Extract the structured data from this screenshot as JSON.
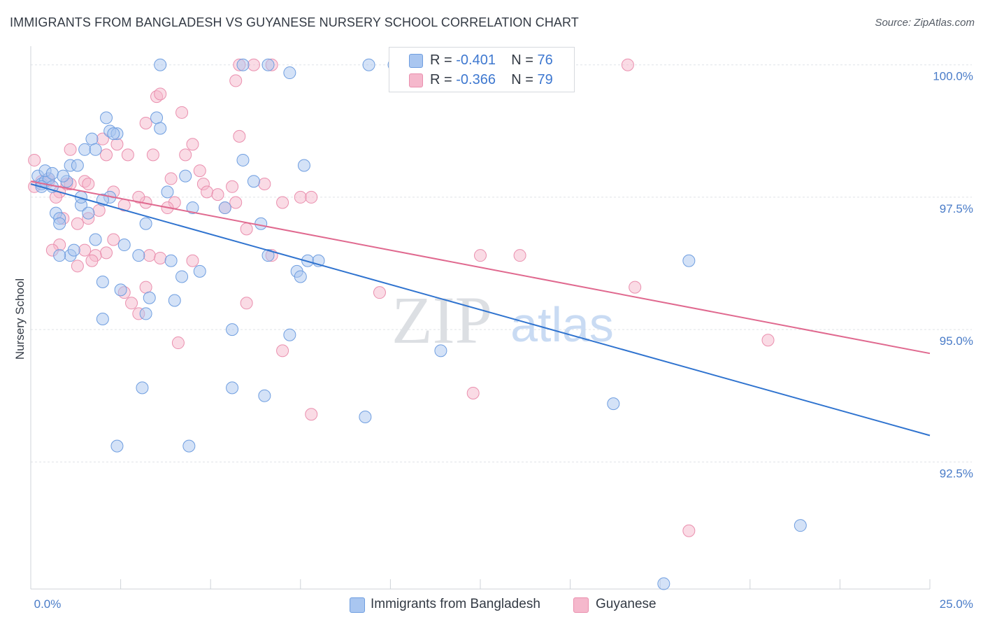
{
  "title": "IMMIGRANTS FROM BANGLADESH VS GUYANESE NURSERY SCHOOL CORRELATION CHART",
  "source": "Source: ZipAtlas.com",
  "watermark": {
    "zip": "ZIP",
    "atlas": "atlas"
  },
  "legend_top": [
    {
      "r_label": "R = ",
      "r_value": "-0.401",
      "n_label": "N = ",
      "n_value": "76"
    },
    {
      "r_label": "R = ",
      "r_value": "-0.366",
      "n_label": "N = ",
      "n_value": "79"
    }
  ],
  "legend_bottom": [
    {
      "label": "Immigrants from Bangladesh"
    },
    {
      "label": "Guyanese"
    }
  ],
  "colors": {
    "blue_fill": "#a9c6f0",
    "blue_stroke": "#6f9ee0",
    "blue_line": "#2f73cf",
    "pink_fill": "#f5b8cc",
    "pink_stroke": "#ea8fae",
    "pink_line": "#e0698f",
    "tick_text": "#4a7cc8",
    "grid": "#dfe3e8"
  },
  "chart_data": {
    "type": "scatter",
    "title": "IMMIGRANTS FROM BANGLADESH VS GUYANESE NURSERY SCHOOL CORRELATION CHART",
    "xlabel": "",
    "ylabel": "Nursery School",
    "xlim": [
      0,
      25
    ],
    "ylim": [
      90.1,
      100.3
    ],
    "x_tick_labels": [
      {
        "value": 0,
        "label": "0.0%"
      },
      {
        "value": 25,
        "label": "25.0%"
      }
    ],
    "y_tick_labels": [
      {
        "value": 100,
        "label": "100.0%"
      },
      {
        "value": 97.5,
        "label": "97.5%"
      },
      {
        "value": 95,
        "label": "95.0%"
      },
      {
        "value": 92.5,
        "label": "92.5%"
      }
    ],
    "series": [
      {
        "name": "Immigrants from Bangladesh",
        "color": "blue",
        "r": -0.401,
        "n": 76,
        "trend": {
          "x": [
            0,
            25
          ],
          "y": [
            97.75,
            93.0
          ]
        },
        "points": [
          [
            0.2,
            97.9
          ],
          [
            0.3,
            97.75
          ],
          [
            0.4,
            97.8
          ],
          [
            0.5,
            97.85
          ],
          [
            0.3,
            97.7
          ],
          [
            0.6,
            97.7
          ],
          [
            0.4,
            98.0
          ],
          [
            0.6,
            97.95
          ],
          [
            1.0,
            97.8
          ],
          [
            1.1,
            98.1
          ],
          [
            0.9,
            97.9
          ],
          [
            1.3,
            98.1
          ],
          [
            1.5,
            98.4
          ],
          [
            1.7,
            98.6
          ],
          [
            1.8,
            98.4
          ],
          [
            2.1,
            99.0
          ],
          [
            2.2,
            98.75
          ],
          [
            2.4,
            98.7
          ],
          [
            2.3,
            98.7
          ],
          [
            3.5,
            99.0
          ],
          [
            3.6,
            98.8
          ],
          [
            0.7,
            97.2
          ],
          [
            1.4,
            97.35
          ],
          [
            1.4,
            97.5
          ],
          [
            0.8,
            97.1
          ],
          [
            0.8,
            97.0
          ],
          [
            1.6,
            97.2
          ],
          [
            2.2,
            97.5
          ],
          [
            2.0,
            97.45
          ],
          [
            1.8,
            96.7
          ],
          [
            2.6,
            96.6
          ],
          [
            3.2,
            97.0
          ],
          [
            3.0,
            96.4
          ],
          [
            3.9,
            96.3
          ],
          [
            4.2,
            96.0
          ],
          [
            4.7,
            96.1
          ],
          [
            4.5,
            97.3
          ],
          [
            5.4,
            97.3
          ],
          [
            5.9,
            98.2
          ],
          [
            6.2,
            97.8
          ],
          [
            6.4,
            97.0
          ],
          [
            6.6,
            96.4
          ],
          [
            7.4,
            96.1
          ],
          [
            7.5,
            96.0
          ],
          [
            7.7,
            96.3
          ],
          [
            8.0,
            96.3
          ],
          [
            7.6,
            98.1
          ],
          [
            4.3,
            97.9
          ],
          [
            3.8,
            97.6
          ],
          [
            4.0,
            95.55
          ],
          [
            3.3,
            95.6
          ],
          [
            3.2,
            95.3
          ],
          [
            2.5,
            95.75
          ],
          [
            2.0,
            95.9
          ],
          [
            1.1,
            96.4
          ],
          [
            1.2,
            96.5
          ],
          [
            0.8,
            96.4
          ],
          [
            2.0,
            95.2
          ],
          [
            5.6,
            95.0
          ],
          [
            7.2,
            94.9
          ],
          [
            5.6,
            93.9
          ],
          [
            6.5,
            93.75
          ],
          [
            3.1,
            93.9
          ],
          [
            9.3,
            93.35
          ],
          [
            11.4,
            94.6
          ],
          [
            2.4,
            92.8
          ],
          [
            4.4,
            92.8
          ],
          [
            16.2,
            93.6
          ],
          [
            18.3,
            96.3
          ],
          [
            21.4,
            91.3
          ],
          [
            17.6,
            90.2
          ],
          [
            3.6,
            100.0
          ],
          [
            5.9,
            100.0
          ],
          [
            6.6,
            100.0
          ],
          [
            7.2,
            99.85
          ],
          [
            9.4,
            100.0
          ],
          [
            10.1,
            100.0
          ]
        ]
      },
      {
        "name": "Guyanese",
        "color": "pink",
        "r": -0.366,
        "n": 79,
        "trend": {
          "x": [
            0,
            25
          ],
          "y": [
            97.8,
            94.55
          ]
        },
        "points": [
          [
            0.1,
            98.2
          ],
          [
            0.1,
            97.7
          ],
          [
            0.3,
            97.8
          ],
          [
            0.5,
            97.8
          ],
          [
            0.5,
            97.85
          ],
          [
            0.8,
            97.6
          ],
          [
            1.0,
            97.75
          ],
          [
            1.1,
            97.75
          ],
          [
            0.7,
            97.5
          ],
          [
            1.5,
            97.8
          ],
          [
            1.6,
            97.75
          ],
          [
            1.1,
            98.4
          ],
          [
            2.0,
            98.6
          ],
          [
            2.4,
            98.5
          ],
          [
            2.1,
            98.3
          ],
          [
            2.7,
            98.3
          ],
          [
            3.4,
            98.3
          ],
          [
            3.2,
            98.9
          ],
          [
            3.5,
            99.4
          ],
          [
            3.6,
            99.45
          ],
          [
            4.2,
            99.1
          ],
          [
            4.5,
            98.5
          ],
          [
            4.3,
            98.3
          ],
          [
            4.7,
            98.0
          ],
          [
            4.8,
            97.75
          ],
          [
            4.9,
            97.6
          ],
          [
            5.2,
            97.55
          ],
          [
            5.6,
            97.7
          ],
          [
            5.4,
            97.3
          ],
          [
            3.9,
            97.85
          ],
          [
            4.0,
            97.4
          ],
          [
            3.8,
            97.3
          ],
          [
            3.2,
            97.4
          ],
          [
            3.0,
            97.5
          ],
          [
            2.6,
            97.35
          ],
          [
            2.3,
            97.6
          ],
          [
            1.9,
            97.25
          ],
          [
            1.6,
            97.1
          ],
          [
            1.3,
            97.0
          ],
          [
            0.9,
            97.1
          ],
          [
            0.8,
            96.6
          ],
          [
            0.6,
            96.5
          ],
          [
            1.5,
            96.5
          ],
          [
            2.1,
            96.45
          ],
          [
            2.3,
            96.7
          ],
          [
            1.8,
            96.4
          ],
          [
            1.7,
            96.3
          ],
          [
            1.3,
            96.2
          ],
          [
            3.3,
            96.4
          ],
          [
            3.6,
            96.35
          ],
          [
            4.5,
            96.3
          ],
          [
            6.0,
            96.9
          ],
          [
            6.7,
            96.4
          ],
          [
            7.0,
            97.4
          ],
          [
            7.5,
            97.5
          ],
          [
            7.8,
            97.5
          ],
          [
            6.5,
            97.75
          ],
          [
            5.7,
            99.7
          ],
          [
            5.8,
            100.0
          ],
          [
            6.2,
            100.0
          ],
          [
            6.7,
            100.0
          ],
          [
            5.8,
            98.65
          ],
          [
            5.7,
            97.4
          ],
          [
            3.2,
            95.8
          ],
          [
            2.6,
            95.7
          ],
          [
            2.8,
            95.5
          ],
          [
            3.0,
            95.3
          ],
          [
            6.0,
            95.5
          ],
          [
            9.7,
            95.7
          ],
          [
            4.1,
            94.75
          ],
          [
            7.0,
            94.6
          ],
          [
            7.8,
            93.4
          ],
          [
            12.3,
            93.8
          ],
          [
            12.5,
            96.4
          ],
          [
            13.6,
            96.4
          ],
          [
            16.8,
            95.8
          ],
          [
            20.5,
            94.8
          ],
          [
            18.3,
            91.2
          ],
          [
            16.6,
            100.0
          ]
        ]
      }
    ]
  }
}
